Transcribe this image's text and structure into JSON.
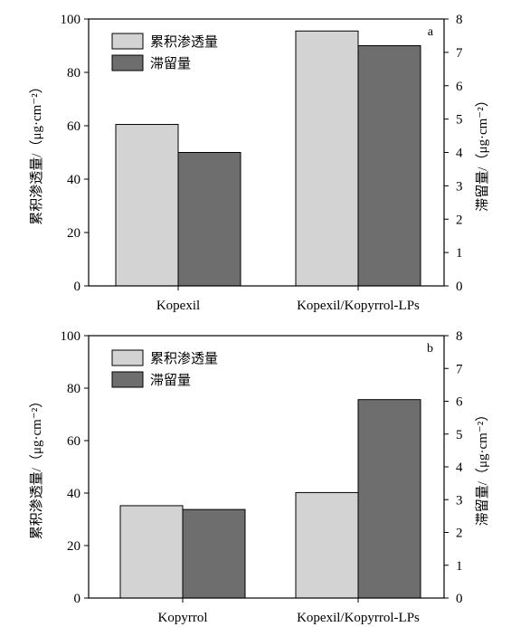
{
  "chart_data": [
    {
      "type": "bar",
      "panel_label": "a",
      "categories": [
        "Kopexil",
        "Kopexil/Kopyrrol-LPs"
      ],
      "series": [
        {
          "name": "累积渗透量",
          "axis": "left",
          "color": "#d3d3d3",
          "values": [
            60.5,
            95.5
          ]
        },
        {
          "name": "滞留量",
          "axis": "right",
          "color": "#6e6e6e",
          "values": [
            4.0,
            7.2
          ]
        }
      ],
      "ylabel_left": "累积渗透量/（μg·cm⁻²）",
      "ylabel_right": "滞留量/（μg·cm⁻²）",
      "ylim_left": [
        0,
        100
      ],
      "ylim_right": [
        0,
        8
      ],
      "yticks_left": [
        "0",
        "20",
        "40",
        "60",
        "80",
        "100"
      ],
      "yticks_right": [
        "0",
        "1",
        "2",
        "3",
        "4",
        "5",
        "6",
        "7",
        "8"
      ],
      "grid": false,
      "legend_position": "top-left"
    },
    {
      "type": "bar",
      "panel_label": "b",
      "categories": [
        "Kopyrrol",
        "Kopexil/Kopyrrol-LPs"
      ],
      "series": [
        {
          "name": "累积渗透量",
          "axis": "left",
          "color": "#d3d3d3",
          "values": [
            35.2,
            40.2
          ]
        },
        {
          "name": "滞留量",
          "axis": "right",
          "color": "#6e6e6e",
          "values": [
            2.7,
            6.05
          ]
        }
      ],
      "ylabel_left": "累积渗透量/（μg·cm⁻²）",
      "ylabel_right": "滞留量/（μg·cm⁻²）",
      "ylim_left": [
        0,
        100
      ],
      "ylim_right": [
        0,
        8
      ],
      "yticks_left": [
        "0",
        "20",
        "40",
        "60",
        "80",
        "100"
      ],
      "yticks_right": [
        "0",
        "1",
        "2",
        "3",
        "4",
        "5",
        "6",
        "7",
        "8"
      ],
      "grid": false,
      "legend_position": "top-left"
    }
  ]
}
